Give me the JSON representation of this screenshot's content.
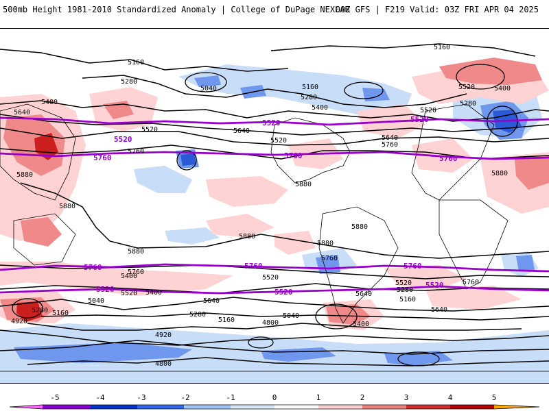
{
  "header": {
    "title": "500mb Height 1981-2010 Standardized Anomaly | College of DuPage NEXLAB",
    "valid": "00Z GFS | F219 Valid: 03Z FRI APR 04 2025"
  },
  "map": {
    "contour_labels": [
      "5160",
      "5160",
      "5280",
      "5040",
      "5160",
      "5280",
      "5400",
      "5520",
      "5280",
      "5400",
      "5400",
      "5520",
      "5640",
      "5520",
      "5520",
      "5640",
      "5760",
      "5640",
      "5760",
      "5880",
      "5880",
      "5880",
      "5880",
      "5880",
      "5880",
      "5880",
      "5760",
      "5760",
      "5880",
      "5400",
      "5520",
      "5640",
      "5400",
      "5280",
      "5160",
      "5040",
      "4920",
      "4800",
      "4920",
      "4800",
      "5160",
      "5040",
      "5520",
      "5280",
      "5520",
      "5640",
      "5760",
      "5160",
      "5280",
      "5400",
      "5640"
    ],
    "key_contour_labels": [
      "5520",
      "5520",
      "5760",
      "5760",
      "5520",
      "5760",
      "5760",
      "5760",
      "5760",
      "5520",
      "5520",
      "5520"
    ]
  },
  "colorbar": {
    "ticks": [
      "-5",
      "-4",
      "-3",
      "-2",
      "-1",
      "0",
      "1",
      "2",
      "3",
      "4",
      "5"
    ],
    "colors": {
      "neg5": "#ff66ff",
      "neg4": "#8800cc",
      "neg3": "#0033cc",
      "neg2": "#3366ee",
      "neg1": "#9ec5f5",
      "neg0": "#d8e8fb",
      "pos0": "#ffffff",
      "pos1": "#ffd0d0",
      "pos2": "#f08080",
      "pos3": "#d03030",
      "pos4": "#b00000",
      "pos5": "#ffa500"
    }
  }
}
